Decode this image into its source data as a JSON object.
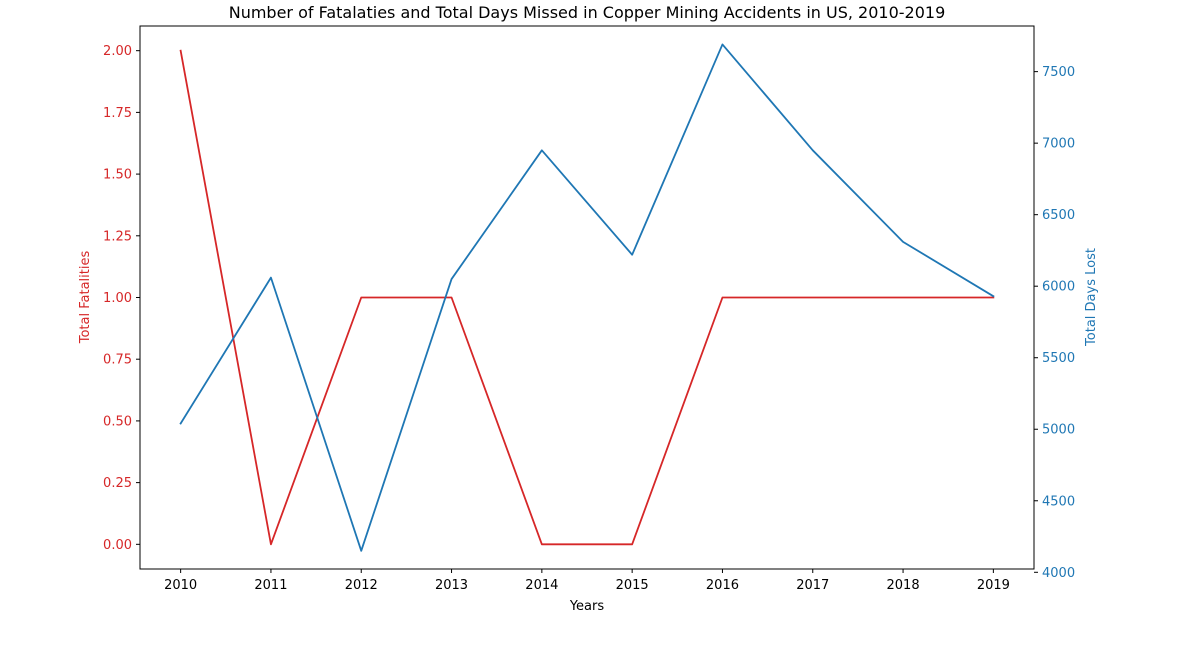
{
  "chart_data": {
    "type": "line",
    "title": "Number of Fatalaties and Total Days Missed in Copper Mining Accidents in US, 2010-2019",
    "xlabel": "Years",
    "x": [
      2010,
      2011,
      2012,
      2013,
      2014,
      2015,
      2016,
      2017,
      2018,
      2019
    ],
    "x_tick_labels": [
      "2010",
      "2011",
      "2012",
      "2013",
      "2014",
      "2015",
      "2016",
      "2017",
      "2018",
      "2019"
    ],
    "xlim": [
      2009.55,
      2019.45
    ],
    "left_axis": {
      "label": "Total Fatalities",
      "color": "#d62728",
      "ylim": [
        -0.1,
        2.1
      ],
      "ticks": [
        0.0,
        0.25,
        0.5,
        0.75,
        1.0,
        1.25,
        1.5,
        1.75,
        2.0
      ],
      "tick_labels": [
        "0.00",
        "0.25",
        "0.50",
        "0.75",
        "1.00",
        "1.25",
        "1.50",
        "1.75",
        "2.00"
      ]
    },
    "right_axis": {
      "label": "Total Days Lost",
      "color": "#1f77b4",
      "ylim": [
        4023,
        7819
      ],
      "ticks": [
        4000,
        4500,
        5000,
        5500,
        6000,
        6500,
        7000,
        7500
      ],
      "tick_labels": [
        "4000",
        "4500",
        "5000",
        "5500",
        "6000",
        "6500",
        "7000",
        "7500"
      ]
    },
    "series": [
      {
        "axis": "left",
        "color": "#d62728",
        "values": [
          2,
          0,
          1,
          1,
          0,
          0,
          1,
          1,
          1,
          1
        ]
      },
      {
        "axis": "right",
        "color": "#1f77b4",
        "values": [
          5040,
          6060,
          4150,
          6050,
          6950,
          6220,
          7690,
          6950,
          6310,
          5930
        ]
      }
    ],
    "grid": false,
    "legend": "none"
  }
}
